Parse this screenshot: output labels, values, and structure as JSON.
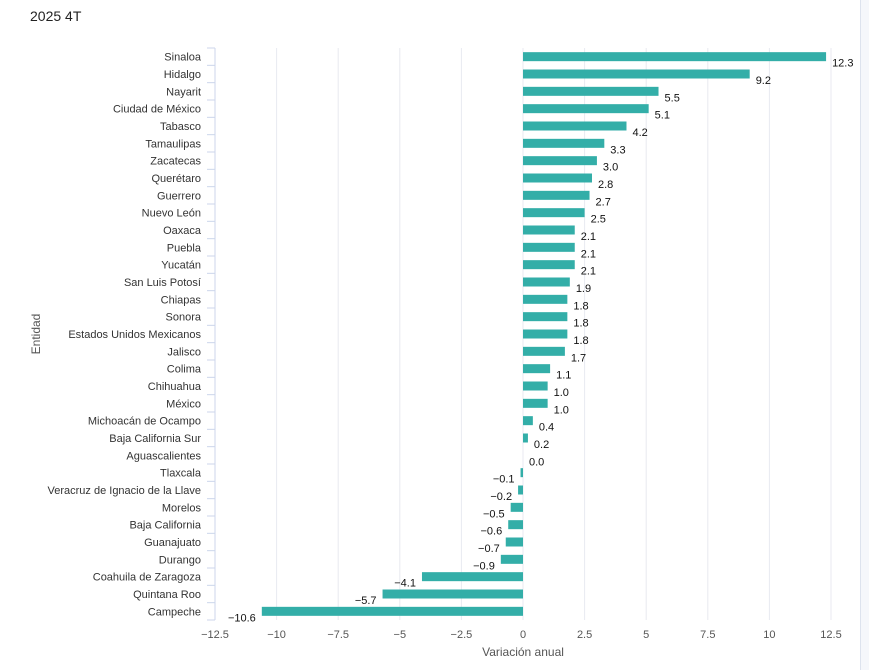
{
  "chart_data": {
    "type": "bar",
    "orientation": "horizontal",
    "title": "2025 4T",
    "xlabel": "Variación anual",
    "ylabel": "Entidad",
    "xlim": [
      -12.5,
      12.5
    ],
    "xticks": [
      "−12.5",
      "−10",
      "−7.5",
      "−5",
      "−2.5",
      "0",
      "2.5",
      "5",
      "7.5",
      "10",
      "12.5"
    ],
    "grid": "vertical",
    "bar_color": "#33aea8",
    "categories": [
      "Sinaloa",
      "Hidalgo",
      "Nayarit",
      "Ciudad de México",
      "Tabasco",
      "Tamaulipas",
      "Zacatecas",
      "Querétaro",
      "Guerrero",
      "Nuevo León",
      "Oaxaca",
      "Puebla",
      "Yucatán",
      "San Luis Potosí",
      "Chiapas",
      "Sonora",
      "Estados Unidos Mexicanos",
      "Jalisco",
      "Colima",
      "Chihuahua",
      "México",
      "Michoacán de Ocampo",
      "Baja California Sur",
      "Aguascalientes",
      "Tlaxcala",
      "Veracruz de Ignacio de la Llave",
      "Morelos",
      "Baja California",
      "Guanajuato",
      "Durango",
      "Coahuila de Zaragoza",
      "Quintana Roo",
      "Campeche"
    ],
    "values": [
      12.3,
      9.2,
      5.5,
      5.1,
      4.2,
      3.3,
      3.0,
      2.8,
      2.7,
      2.5,
      2.1,
      2.1,
      2.1,
      1.9,
      1.8,
      1.8,
      1.8,
      1.7,
      1.1,
      1.0,
      1.0,
      0.4,
      0.2,
      0.0,
      -0.1,
      -0.2,
      -0.5,
      -0.6,
      -0.7,
      -0.9,
      -4.1,
      -5.7,
      -10.6
    ],
    "data_labels": [
      "12.3",
      "9.2",
      "5.5",
      "5.1",
      "4.2",
      "3.3",
      "3.0",
      "2.8",
      "2.7",
      "2.5",
      "2.1",
      "2.1",
      "2.1",
      "1.9",
      "1.8",
      "1.8",
      "1.8",
      "1.7",
      "1.1",
      "1.0",
      "1.0",
      "0.4",
      "0.2",
      "0.0",
      "−0.1",
      "−0.2",
      "−0.5",
      "−0.6",
      "−0.7",
      "−0.9",
      "−4.1",
      "−5.7",
      "−10.6"
    ]
  }
}
